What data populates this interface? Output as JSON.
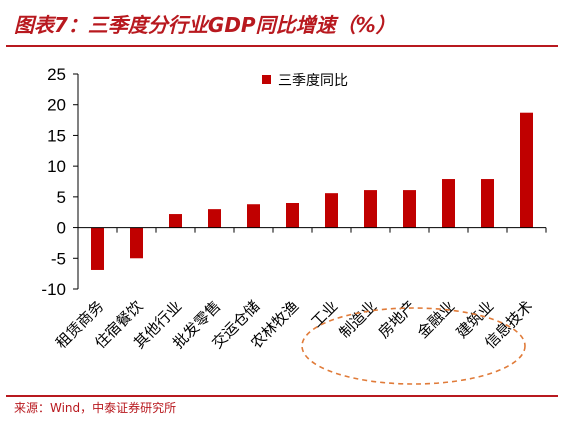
{
  "header": {
    "title": "图表7：三季度分行业GDP同比增速（%）"
  },
  "footer": {
    "source": "来源：Wind，中泰证券研究所"
  },
  "colors": {
    "accent": "#b8191f",
    "bar": "#c00000",
    "highlight_ellipse": "#e07b39"
  },
  "chart_data": {
    "type": "bar",
    "categories": [
      "租赁商务",
      "住宿餐饮",
      "其他行业",
      "批发零售",
      "交运仓储",
      "农林牧渔",
      "工业",
      "制造业",
      "房地产",
      "金融业",
      "建筑业",
      "信息技术"
    ],
    "series": [
      {
        "name": "三季度同比",
        "values": [
          -6.9,
          -5.0,
          2.2,
          3.0,
          3.8,
          4.0,
          5.6,
          6.1,
          6.1,
          7.9,
          7.9,
          18.7
        ]
      }
    ],
    "ylim": [
      -10,
      25
    ],
    "yticks": [
      -10,
      -5,
      0,
      5,
      10,
      15,
      20,
      25
    ],
    "title": "",
    "xlabel": "",
    "ylabel": "",
    "legend": "top-center",
    "grid": false,
    "highlight": {
      "shape": "dashed-ellipse",
      "categories": [
        "工业",
        "制造业",
        "房地产",
        "金融业",
        "建筑业"
      ]
    }
  }
}
